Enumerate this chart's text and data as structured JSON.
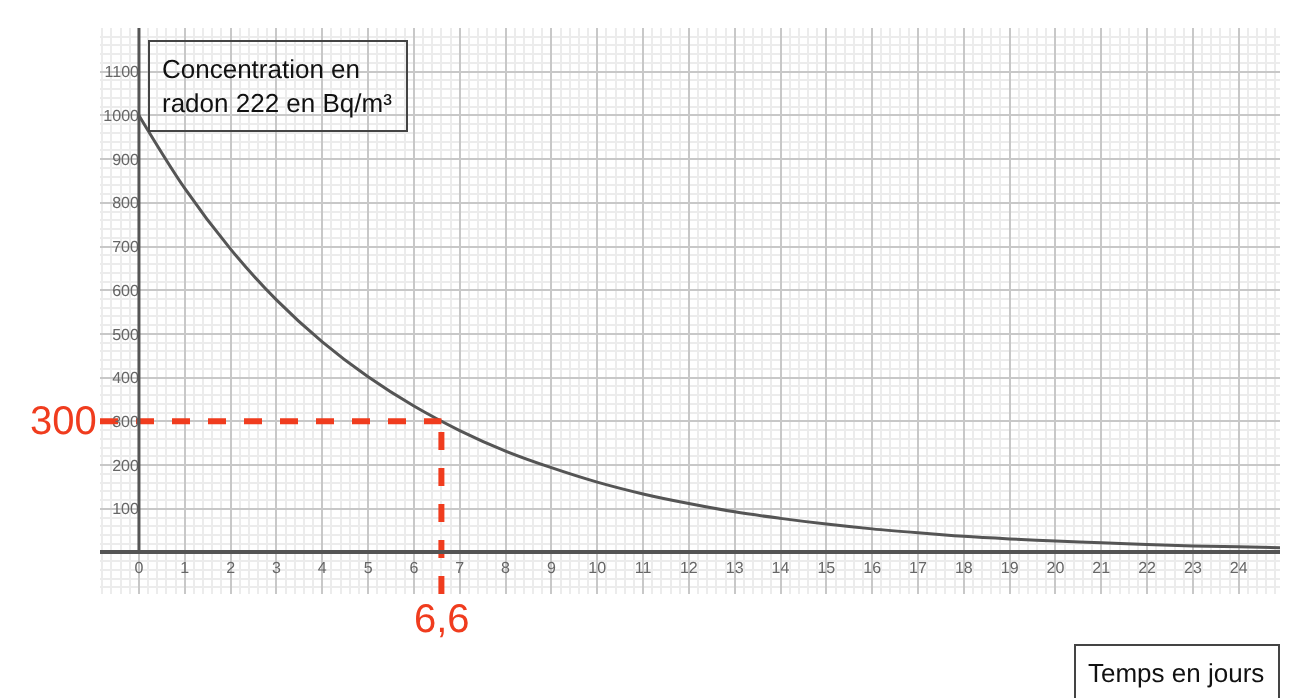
{
  "chart_data": {
    "type": "line",
    "xlabel": "Temps en jours",
    "ylabel": "Concentration en\nradon 222 en Bq/m³",
    "x": [
      0,
      1,
      2,
      3,
      4,
      5,
      6,
      7,
      8,
      9,
      10,
      11,
      12,
      13,
      14,
      15,
      16,
      17,
      18,
      19,
      20,
      21,
      22,
      23,
      24,
      24.9
    ],
    "series": [
      {
        "color": "#555555",
        "values": [
          1000,
          833,
          694,
          578,
          482,
          402,
          335,
          279,
          232,
          194,
          161,
          134,
          112,
          93,
          78,
          65,
          54,
          45,
          37,
          31,
          26,
          22,
          18,
          15,
          13,
          11
        ]
      }
    ],
    "xlim": [
      -0.85,
      24.9
    ],
    "ylim": [
      -95,
      1200
    ],
    "xticks": [
      0,
      1,
      2,
      3,
      4,
      5,
      6,
      7,
      8,
      9,
      10,
      11,
      12,
      13,
      14,
      15,
      16,
      17,
      18,
      19,
      20,
      21,
      22,
      23,
      24
    ],
    "yticks": [
      100,
      200,
      300,
      400,
      500,
      600,
      700,
      800,
      900,
      1000,
      1100
    ],
    "grid": true,
    "marker": "none",
    "line_style": "solid",
    "ref_lines": [
      {
        "axis": "y",
        "value": 300,
        "label": "300",
        "color": "#f03c1e",
        "line_style": "dashed"
      },
      {
        "axis": "x",
        "value": 6.6,
        "label": "6,6",
        "color": "#f03c1e",
        "line_style": "dashed"
      }
    ]
  }
}
